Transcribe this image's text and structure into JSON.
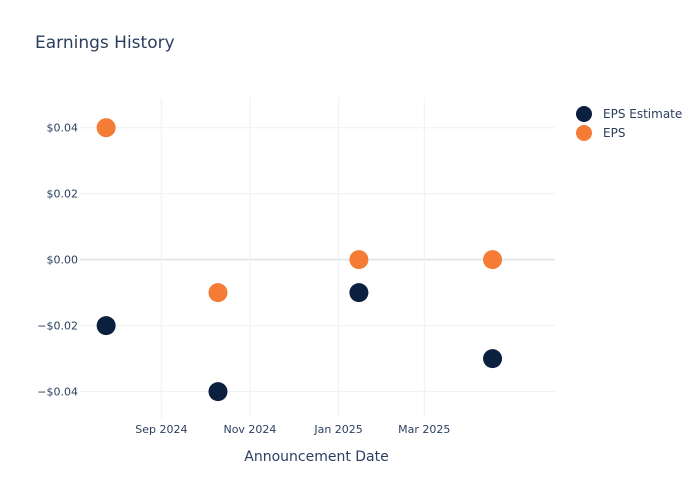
{
  "title": "Earnings History",
  "colors": {
    "estimate": "#0b1f3f",
    "actual": "#f47c35",
    "grid": "#eef0f3",
    "zeroline": "#e4e7ec",
    "text": "#2a3f5f"
  },
  "chart_data": {
    "type": "scatter",
    "title": "Earnings History",
    "xlabel": "Announcement Date",
    "ylabel": "",
    "x_ticks": [
      "Sep 2024",
      "Nov 2024",
      "Jan 2025",
      "Mar 2025"
    ],
    "x_tick_dates": [
      "2024-09-01",
      "2024-11-01",
      "2025-01-01",
      "2025-03-01"
    ],
    "y_ticks": [
      "$0.04",
      "$0.02",
      "$0.00",
      "−$0.02",
      "−$0.04"
    ],
    "y_tick_values": [
      0.04,
      0.02,
      0,
      -0.02,
      -0.04
    ],
    "xlim": [
      "2024-07-07",
      "2025-05-30"
    ],
    "ylim": [
      -0.048,
      0.049
    ],
    "grid": true,
    "legend_position": "right",
    "x": [
      "2024-07-25",
      "2024-10-10",
      "2025-01-15",
      "2025-04-17"
    ],
    "series": [
      {
        "name": "EPS Estimate",
        "color_key": "estimate",
        "values": [
          -0.02,
          -0.04,
          -0.01,
          -0.03
        ]
      },
      {
        "name": "EPS",
        "color_key": "actual",
        "values": [
          0.04,
          -0.01,
          0.0,
          0.0
        ]
      }
    ]
  }
}
